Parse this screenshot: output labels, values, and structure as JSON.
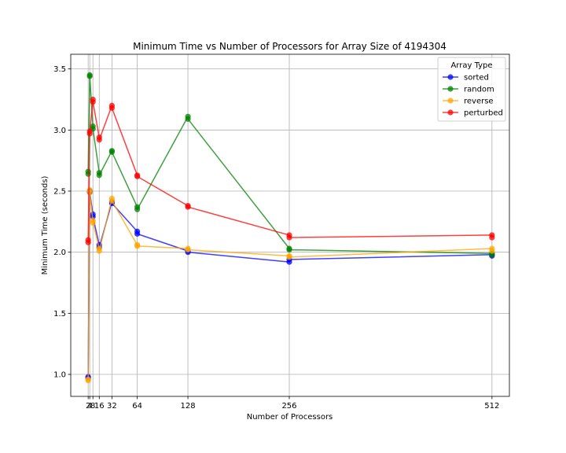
{
  "chart_data": {
    "type": "line",
    "title": "Minimum Time vs Number of Processors for Array Size of 4194304",
    "xlabel": "Number of Processors",
    "ylabel": "Minimum Time (seconds)",
    "x_ticks": [
      2,
      4,
      8,
      16,
      32,
      64,
      128,
      256,
      512
    ],
    "x_tick_labels": [
      "2",
      "4",
      "8",
      "16",
      "32",
      "64",
      "128",
      "256",
      "512"
    ],
    "y_ticks": [
      1.0,
      1.5,
      2.0,
      2.5,
      3.0,
      3.5
    ],
    "y_tick_labels": [
      "1.0",
      "1.5",
      "2.0",
      "2.5",
      "3.0",
      "3.5"
    ],
    "xlim": [
      -20,
      534
    ],
    "ylim": [
      0.82,
      3.62
    ],
    "grid": true,
    "legend": {
      "title": "Array Type",
      "position": "top-right"
    },
    "series": [
      {
        "name": "sorted",
        "color": "#0000ff",
        "points": [
          [
            2,
            0.98
          ],
          [
            2,
            0.97
          ],
          [
            4,
            2.5
          ],
          [
            4,
            2.49
          ],
          [
            8,
            2.31
          ],
          [
            8,
            2.29
          ],
          [
            16,
            2.06
          ],
          [
            16,
            2.04
          ],
          [
            32,
            2.41
          ],
          [
            32,
            2.4
          ],
          [
            64,
            2.17
          ],
          [
            64,
            2.15
          ],
          [
            128,
            2.01
          ],
          [
            128,
            2.0
          ],
          [
            256,
            1.92
          ],
          [
            256,
            1.94
          ],
          [
            512,
            1.98
          ],
          [
            512,
            1.97
          ]
        ]
      },
      {
        "name": "random",
        "color": "#008000",
        "points": [
          [
            2,
            2.66
          ],
          [
            2,
            2.64
          ],
          [
            4,
            3.45
          ],
          [
            4,
            3.44
          ],
          [
            8,
            3.03
          ],
          [
            8,
            3.01
          ],
          [
            16,
            2.65
          ],
          [
            16,
            2.63
          ],
          [
            32,
            2.83
          ],
          [
            32,
            2.82
          ],
          [
            64,
            2.37
          ],
          [
            64,
            2.35
          ],
          [
            128,
            3.11
          ],
          [
            128,
            3.09
          ],
          [
            256,
            2.03
          ],
          [
            256,
            2.02
          ],
          [
            512,
            1.99
          ],
          [
            512,
            1.98
          ]
        ]
      },
      {
        "name": "reverse",
        "color": "#ffa500",
        "points": [
          [
            2,
            0.96
          ],
          [
            2,
            0.95
          ],
          [
            4,
            2.51
          ],
          [
            4,
            2.49
          ],
          [
            8,
            2.26
          ],
          [
            8,
            2.24
          ],
          [
            16,
            2.03
          ],
          [
            16,
            2.01
          ],
          [
            32,
            2.44
          ],
          [
            32,
            2.42
          ],
          [
            64,
            2.06
          ],
          [
            64,
            2.05
          ],
          [
            128,
            2.03
          ],
          [
            128,
            2.02
          ],
          [
            256,
            1.97
          ],
          [
            256,
            1.96
          ],
          [
            512,
            2.03
          ],
          [
            512,
            2.01
          ]
        ]
      },
      {
        "name": "perturbed",
        "color": "#ff0000",
        "points": [
          [
            2,
            2.1
          ],
          [
            2,
            2.08
          ],
          [
            4,
            2.99
          ],
          [
            4,
            2.97
          ],
          [
            8,
            3.25
          ],
          [
            8,
            3.23
          ],
          [
            16,
            2.94
          ],
          [
            16,
            2.92
          ],
          [
            32,
            3.2
          ],
          [
            32,
            3.18
          ],
          [
            64,
            2.63
          ],
          [
            64,
            2.62
          ],
          [
            128,
            2.38
          ],
          [
            128,
            2.37
          ],
          [
            256,
            2.14
          ],
          [
            256,
            2.12
          ],
          [
            512,
            2.14
          ],
          [
            512,
            2.12
          ]
        ]
      }
    ]
  }
}
